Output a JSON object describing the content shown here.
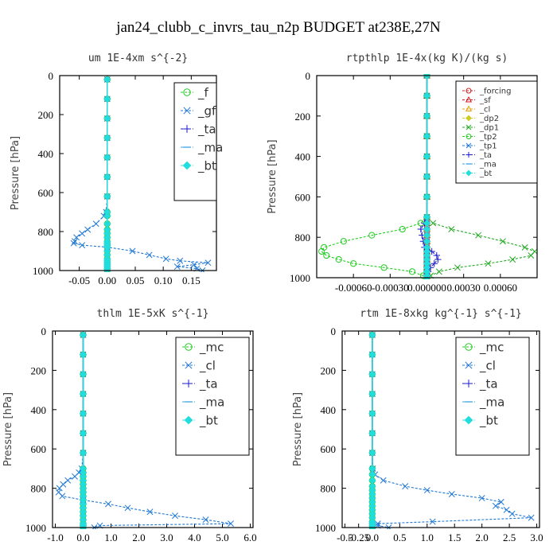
{
  "figure_title": "jan24_clubb_c_invrs_tau_n2p  BUDGET at238E,27N",
  "chart_data": [
    {
      "type": "line",
      "title": "um  1E-4xm s^{-2}",
      "ylabel": "Pressure [hPa]",
      "xlim": [
        -0.085,
        0.195
      ],
      "ylim": [
        1000,
        0
      ],
      "xticks": [
        -0.05,
        0.0,
        0.05,
        0.1,
        0.15
      ],
      "xtick_labels": [
        "-0.05",
        "0.00",
        "0.05",
        "0.10",
        "0.15"
      ],
      "yticks": [
        0,
        200,
        400,
        600,
        800,
        1000
      ],
      "ytick_labels": [
        "0",
        "200",
        "400",
        "600",
        "800",
        "1000"
      ],
      "legend_position": "top-right",
      "y": [
        20,
        120,
        220,
        320,
        420,
        520,
        620,
        700,
        720,
        760,
        790,
        810,
        830,
        850,
        860,
        870,
        880,
        900,
        920,
        940,
        950,
        960,
        970,
        980,
        990,
        1000
      ],
      "series": [
        {
          "name": "_f",
          "color": "#22cc22",
          "marker": "circle",
          "values": [
            0,
            0,
            0,
            0,
            0,
            0,
            0,
            0,
            0,
            0,
            0,
            0,
            0,
            0,
            0,
            0,
            0,
            0,
            0,
            0,
            0,
            0,
            0,
            0,
            0,
            0
          ]
        },
        {
          "name": "_gf",
          "color": "#1f77d4",
          "marker": "cross",
          "values": [
            0,
            0,
            0,
            0,
            0,
            0,
            0,
            -0.002,
            -0.006,
            -0.02,
            -0.035,
            -0.045,
            -0.055,
            -0.058,
            -0.06,
            -0.045,
            0.0,
            0.045,
            0.075,
            0.105,
            0.13,
            0.18,
            0.155,
            0.125,
            0.16,
            0.17
          ]
        },
        {
          "name": "_ta",
          "color": "#1a1acc",
          "marker": "plus",
          "values": [
            0,
            0,
            0,
            0,
            0,
            0,
            0,
            0,
            0,
            0,
            0,
            0,
            0,
            0,
            0,
            0,
            0,
            0,
            0,
            0,
            0,
            0,
            0,
            0,
            0,
            0
          ]
        },
        {
          "name": "_ma",
          "color": "#3aa0e0",
          "marker": "dash",
          "values": [
            0,
            0,
            0,
            0,
            0,
            0,
            0,
            0,
            0,
            0,
            0,
            0,
            0,
            0,
            0,
            0,
            0,
            0,
            0,
            0,
            0,
            0,
            0,
            0,
            0,
            0
          ]
        },
        {
          "name": "_bt",
          "color": "#22dddd",
          "marker": "diamond",
          "values": [
            0,
            0,
            0,
            0,
            0,
            0,
            0,
            0,
            0,
            0,
            0,
            0,
            0,
            0,
            0,
            0,
            0,
            0,
            0,
            0,
            0,
            0,
            0,
            0,
            0,
            0
          ]
        }
      ]
    },
    {
      "type": "line",
      "title": "rtpthlp  1E-4x(kg K)/(kg s)",
      "ylabel": "Pressure [hPa]",
      "xlim": [
        -0.0009,
        0.0009
      ],
      "ylim": [
        1000,
        0
      ],
      "xticks": [
        -0.0006,
        -0.0003,
        0.0,
        0.0003,
        0.0006
      ],
      "xtick_labels": [
        "-0.00060",
        "-0.00030",
        "0.000000",
        "0.00030",
        "0.00060"
      ],
      "yticks": [
        0,
        200,
        400,
        600,
        800,
        1000
      ],
      "ytick_labels": [
        "0",
        "200",
        "400",
        "600",
        "800",
        "1000"
      ],
      "legend_position": "top-right",
      "y": [
        0,
        100,
        200,
        300,
        400,
        500,
        600,
        700,
        730,
        760,
        790,
        820,
        850,
        870,
        890,
        910,
        930,
        950,
        970,
        990,
        1000
      ],
      "series": [
        {
          "name": "_forcing",
          "color": "#cc2222",
          "marker": "circle",
          "values": [
            0,
            0,
            0,
            0,
            0,
            0,
            0,
            0,
            0,
            0,
            0,
            0,
            0,
            0,
            0,
            0,
            0,
            0,
            0,
            0,
            0
          ]
        },
        {
          "name": "_sf",
          "color": "#dd1111",
          "marker": "triangle",
          "values": [
            0,
            0,
            0,
            0,
            0,
            0,
            0,
            0,
            0,
            0,
            0,
            0,
            0,
            0,
            0,
            0,
            0,
            0,
            0,
            0,
            0
          ]
        },
        {
          "name": "_cl",
          "color": "#e8a000",
          "marker": "triangle",
          "values": [
            0,
            0,
            0,
            0,
            0,
            0,
            0,
            0,
            0,
            0,
            0,
            0,
            0,
            0,
            0,
            0,
            0,
            0,
            0,
            0,
            0
          ]
        },
        {
          "name": "_dp2",
          "color": "#cccc22",
          "marker": "diamond",
          "values": [
            0,
            0,
            0,
            0,
            0,
            0,
            0,
            0,
            0,
            0,
            0,
            0,
            0,
            0,
            0,
            0,
            0,
            0,
            0,
            0,
            0
          ]
        },
        {
          "name": "_dp1",
          "color": "#22aa22",
          "marker": "cross",
          "values": [
            0,
            0,
            0,
            0,
            0,
            0,
            0,
            0,
            5e-05,
            0.0002,
            0.00042,
            0.00062,
            0.0008,
            0.00088,
            0.00085,
            0.0007,
            0.0005,
            0.00025,
            0.0001,
            3e-05,
            0.0
          ]
        },
        {
          "name": "_tp2",
          "color": "#22cc22",
          "marker": "circle",
          "values": [
            0,
            0,
            0,
            0,
            0,
            0,
            0,
            0,
            -5e-05,
            -0.0002,
            -0.00045,
            -0.00068,
            -0.00084,
            -0.00086,
            -0.00082,
            -0.00072,
            -0.0006,
            -0.00035,
            -0.00012,
            -3e-05,
            0.0
          ]
        },
        {
          "name": "_tp1",
          "color": "#1f77d4",
          "marker": "cross",
          "values": [
            0,
            0,
            0,
            0,
            0,
            0,
            0,
            0,
            0,
            0,
            0,
            0,
            0,
            0,
            0,
            0,
            0,
            0,
            0,
            0,
            0
          ]
        },
        {
          "name": "_ta",
          "color": "#1a1acc",
          "marker": "plus",
          "values": [
            0,
            0,
            0,
            0,
            0,
            0,
            0,
            0,
            -2e-05,
            -5e-05,
            -4e-05,
            -3e-05,
            -2e-05,
            4e-05,
            8e-05,
            9e-05,
            6e-05,
            3e-05,
            1e-05,
            0.0,
            0.0
          ]
        },
        {
          "name": "_ma",
          "color": "#3aa0e0",
          "marker": "dash",
          "values": [
            0,
            0,
            0,
            0,
            0,
            0,
            0,
            0,
            0,
            0,
            0,
            0,
            0,
            0,
            0,
            0,
            0,
            0,
            0,
            0,
            0
          ]
        },
        {
          "name": "_bt",
          "color": "#22dddd",
          "marker": "diamond",
          "values": [
            0,
            0,
            0,
            0,
            0,
            0,
            0,
            0,
            0,
            0,
            0,
            0,
            0,
            0,
            0,
            0,
            0,
            0,
            0,
            0,
            0
          ]
        }
      ]
    },
    {
      "type": "line",
      "title": "thlm  1E-5xK s^{-1}",
      "ylabel": "Pressure [hPa]",
      "xlim": [
        -1.1,
        6.1
      ],
      "ylim": [
        1000,
        0
      ],
      "xticks": [
        -1.0,
        0.0,
        1.0,
        2.0,
        3.0,
        4.0,
        5.0,
        6.0
      ],
      "xtick_labels": [
        "-1.0",
        "0.0",
        "1.0",
        "2.0",
        "3.0",
        "4.0",
        "5.0",
        "6.0"
      ],
      "yticks": [
        0,
        200,
        400,
        600,
        800,
        1000
      ],
      "ytick_labels": [
        "0",
        "200",
        "400",
        "600",
        "800",
        "1000"
      ],
      "legend_position": "top-right",
      "y": [
        20,
        120,
        220,
        320,
        420,
        520,
        620,
        700,
        720,
        740,
        760,
        780,
        800,
        820,
        840,
        860,
        880,
        900,
        920,
        940,
        960,
        980,
        990,
        1000
      ],
      "series": [
        {
          "name": "_mc",
          "color": "#22cc22",
          "marker": "circle",
          "values": [
            0,
            0,
            0,
            0,
            0,
            0,
            0,
            0,
            0,
            0,
            0,
            0,
            0,
            0,
            0,
            0,
            0,
            0,
            0,
            0,
            0,
            0,
            0,
            0
          ]
        },
        {
          "name": "_cl",
          "color": "#1f77d4",
          "marker": "cross",
          "values": [
            0,
            0,
            0,
            0,
            0,
            0,
            0,
            -0.05,
            -0.15,
            -0.3,
            -0.55,
            -0.72,
            -0.85,
            -0.88,
            -0.75,
            0.0,
            0.9,
            1.6,
            2.4,
            3.3,
            4.4,
            5.3,
            0.6,
            0.4
          ]
        },
        {
          "name": "_ta",
          "color": "#1a1acc",
          "marker": "plus",
          "values": [
            0,
            0,
            0,
            0,
            0,
            0,
            0,
            0,
            0,
            0,
            0,
            0,
            0,
            0,
            0,
            0,
            0,
            0,
            0,
            0,
            0,
            0,
            0,
            0
          ]
        },
        {
          "name": "_ma",
          "color": "#3aa0e0",
          "marker": "dash",
          "values": [
            0,
            0,
            0,
            0,
            0,
            0,
            0,
            0,
            0,
            0,
            0,
            0,
            0,
            0,
            0,
            0,
            0,
            0,
            0,
            0,
            0,
            0,
            0,
            0
          ]
        },
        {
          "name": "_bt",
          "color": "#22dddd",
          "marker": "diamond",
          "values": [
            0,
            0,
            0,
            0,
            0,
            0,
            0,
            0,
            0,
            0,
            0,
            0,
            0,
            0,
            0,
            0,
            0,
            0,
            0,
            0,
            0,
            0,
            0,
            0
          ]
        }
      ]
    },
    {
      "type": "line",
      "title": "rtm  1E-8xkg kg^{-1} s^{-1}",
      "ylabel": "Pressure [hPa]",
      "xlim": [
        -0.55,
        3.05
      ],
      "ylim": [
        1000,
        0
      ],
      "xticks": [
        -0.5,
        -0.25,
        0.0,
        0.5,
        1.0,
        1.5,
        2.0,
        2.5,
        3.0
      ],
      "xtick_labels": [
        "-0.5",
        "-0.25",
        "0.0",
        "0.5",
        "1.0",
        "1.5",
        "2.0",
        "2.5",
        "3.0"
      ],
      "yticks": [
        0,
        200,
        400,
        600,
        800,
        1000
      ],
      "ytick_labels": [
        "0",
        "200",
        "400",
        "600",
        "800",
        "1000"
      ],
      "legend_position": "top-right",
      "y": [
        20,
        120,
        220,
        320,
        420,
        520,
        620,
        700,
        730,
        760,
        790,
        810,
        830,
        850,
        870,
        890,
        910,
        930,
        950,
        970,
        980,
        990,
        1000
      ],
      "series": [
        {
          "name": "_mc",
          "color": "#22cc22",
          "marker": "circle",
          "values": [
            0,
            0,
            0,
            0,
            0,
            0,
            0,
            0,
            0,
            0,
            0,
            0,
            0,
            0,
            0,
            0,
            0,
            0,
            0,
            0,
            0,
            0,
            0
          ]
        },
        {
          "name": "_cl",
          "color": "#1f77d4",
          "marker": "cross",
          "values": [
            0,
            0,
            0,
            0,
            0,
            0,
            0,
            0.01,
            0.05,
            0.2,
            0.6,
            1.0,
            1.45,
            2.0,
            2.35,
            2.25,
            2.45,
            2.55,
            2.9,
            1.1,
            0.1,
            0.1,
            0.3
          ]
        },
        {
          "name": "_ta",
          "color": "#1a1acc",
          "marker": "plus",
          "values": [
            0,
            0,
            0,
            0,
            0,
            0,
            0,
            0,
            0,
            0,
            0,
            0,
            0,
            0,
            0,
            0,
            0,
            0,
            0,
            0,
            0,
            0,
            0
          ]
        },
        {
          "name": "_ma",
          "color": "#3aa0e0",
          "marker": "dash",
          "values": [
            0,
            0,
            0,
            0,
            0,
            0,
            0,
            0,
            0,
            0,
            0,
            0,
            0,
            0,
            0,
            0,
            0,
            0,
            0,
            0,
            0,
            0,
            0
          ]
        },
        {
          "name": "_bt",
          "color": "#22dddd",
          "marker": "diamond",
          "values": [
            0,
            0,
            0,
            0,
            0,
            0,
            0,
            0,
            0,
            0,
            0,
            0,
            0,
            0,
            0,
            0,
            0,
            0,
            0,
            0,
            0,
            0,
            0
          ]
        }
      ]
    }
  ]
}
